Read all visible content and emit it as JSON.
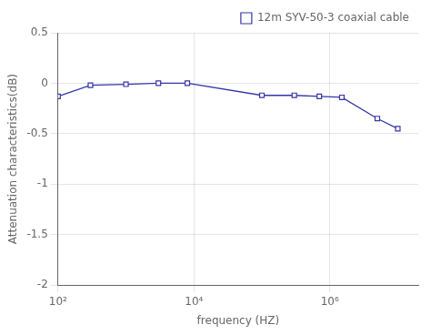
{
  "chart_data": {
    "type": "line",
    "xlabel": "frequency (HZ)",
    "ylabel": "Attenuation characteristics(dB)",
    "x": [
      100,
      300,
      1000,
      3000,
      8000,
      100000,
      300000,
      700000,
      1500000,
      5000000,
      10000000
    ],
    "series": [
      {
        "name": "12m SYV-50-3 coaxial cable",
        "color": "#3535aa",
        "marker": "square",
        "values": [
          -0.13,
          -0.02,
          -0.01,
          0.0,
          0.0,
          -0.12,
          -0.12,
          -0.13,
          -0.14,
          -0.35,
          -0.45
        ]
      }
    ],
    "log": "x",
    "xlim": [
      100,
      20000000
    ],
    "xticks": [
      {
        "value": 100,
        "label": "10²"
      },
      {
        "value": 10000,
        "label": "10⁴"
      },
      {
        "value": 1000000,
        "label": "10⁶"
      }
    ],
    "ylim": [
      -2,
      0.5
    ],
    "yticks": [
      0.5,
      0,
      -0.5,
      -1,
      -1.5,
      -2
    ],
    "grid": true,
    "legend": "upper right"
  }
}
